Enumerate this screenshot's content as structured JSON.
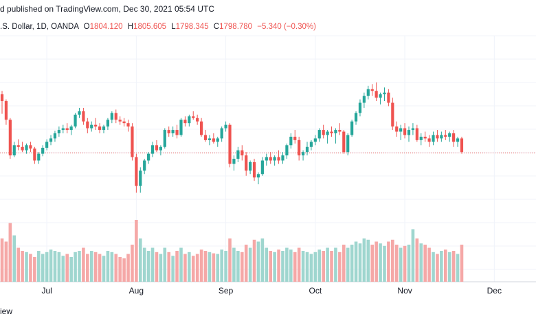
{
  "header": {
    "published": "d published on TradingView.com, Dec 30, 2021 05:54 UTC",
    "symbol": ".S. Dollar, 1D, OANDA",
    "open_label": "O",
    "open": "1804.120",
    "high_label": "H",
    "high": "1805.605",
    "low_label": "L",
    "low": "1798.345",
    "close_label": "C",
    "close": "1798.780",
    "change": "−5.340 (−0.30%)"
  },
  "footer": {
    "brand": "iew"
  },
  "colors": {
    "up": "#26a69a",
    "down": "#ef5350",
    "up_volume": "#9fd6cf",
    "down_volume": "#f5a8a7",
    "grid": "#f0f3fa",
    "last_price_line": "#ef5350"
  },
  "chart_data": {
    "type": "candlestick",
    "x_tick_labels": [
      "Jul",
      "Aug",
      "Sep",
      "Oct",
      "Nov",
      "Dec"
    ],
    "x_tick_index": [
      11,
      33,
      55,
      77,
      99,
      121
    ],
    "last_price": 1798.78,
    "ylim": [
      1720,
      1890
    ],
    "volume_max": 100,
    "candles": [
      [
        1868,
        1872,
        1845,
        1860,
        70
      ],
      [
        1860,
        1862,
        1832,
        1838,
        65
      ],
      [
        1838,
        1840,
        1792,
        1796,
        95
      ],
      [
        1796,
        1812,
        1794,
        1808,
        75
      ],
      [
        1808,
        1815,
        1802,
        1806,
        55
      ],
      [
        1806,
        1812,
        1800,
        1802,
        50
      ],
      [
        1802,
        1810,
        1798,
        1808,
        48
      ],
      [
        1808,
        1812,
        1800,
        1804,
        45
      ],
      [
        1804,
        1806,
        1786,
        1790,
        40
      ],
      [
        1790,
        1800,
        1786,
        1798,
        50
      ],
      [
        1798,
        1808,
        1795,
        1805,
        45
      ],
      [
        1805,
        1815,
        1802,
        1812,
        48
      ],
      [
        1812,
        1820,
        1808,
        1816,
        52
      ],
      [
        1816,
        1825,
        1812,
        1822,
        50
      ],
      [
        1822,
        1830,
        1818,
        1826,
        48
      ],
      [
        1826,
        1832,
        1822,
        1828,
        42
      ],
      [
        1828,
        1834,
        1822,
        1826,
        45
      ],
      [
        1826,
        1832,
        1820,
        1830,
        40
      ],
      [
        1830,
        1846,
        1828,
        1844,
        48
      ],
      [
        1844,
        1852,
        1840,
        1848,
        50
      ],
      [
        1848,
        1852,
        1832,
        1836,
        55
      ],
      [
        1836,
        1840,
        1822,
        1828,
        45
      ],
      [
        1828,
        1836,
        1824,
        1832,
        50
      ],
      [
        1832,
        1840,
        1826,
        1830,
        48
      ],
      [
        1830,
        1834,
        1822,
        1826,
        45
      ],
      [
        1826,
        1832,
        1822,
        1830,
        42
      ],
      [
        1830,
        1840,
        1826,
        1838,
        50
      ],
      [
        1838,
        1848,
        1834,
        1846,
        48
      ],
      [
        1846,
        1850,
        1834,
        1838,
        45
      ],
      [
        1838,
        1842,
        1832,
        1836,
        40
      ],
      [
        1836,
        1840,
        1830,
        1834,
        38
      ],
      [
        1834,
        1838,
        1824,
        1830,
        45
      ],
      [
        1830,
        1834,
        1790,
        1794,
        60
      ],
      [
        1794,
        1798,
        1752,
        1760,
        100
      ],
      [
        1760,
        1782,
        1752,
        1778,
        70
      ],
      [
        1778,
        1792,
        1774,
        1790,
        55
      ],
      [
        1790,
        1800,
        1786,
        1798,
        50
      ],
      [
        1798,
        1812,
        1794,
        1808,
        55
      ],
      [
        1808,
        1814,
        1800,
        1802,
        48
      ],
      [
        1802,
        1808,
        1796,
        1806,
        45
      ],
      [
        1806,
        1828,
        1804,
        1826,
        55
      ],
      [
        1826,
        1830,
        1818,
        1822,
        48
      ],
      [
        1822,
        1830,
        1818,
        1826,
        42
      ],
      [
        1826,
        1832,
        1816,
        1820,
        50
      ],
      [
        1820,
        1840,
        1818,
        1838,
        55
      ],
      [
        1838,
        1842,
        1830,
        1834,
        45
      ],
      [
        1834,
        1844,
        1830,
        1842,
        48
      ],
      [
        1842,
        1848,
        1838,
        1840,
        42
      ],
      [
        1840,
        1844,
        1832,
        1836,
        45
      ],
      [
        1836,
        1840,
        1818,
        1820,
        52
      ],
      [
        1820,
        1826,
        1812,
        1814,
        50
      ],
      [
        1814,
        1820,
        1808,
        1816,
        48
      ],
      [
        1816,
        1822,
        1810,
        1812,
        46
      ],
      [
        1812,
        1818,
        1806,
        1816,
        45
      ],
      [
        1816,
        1830,
        1812,
        1828,
        52
      ],
      [
        1828,
        1836,
        1824,
        1832,
        50
      ],
      [
        1832,
        1834,
        1782,
        1786,
        70
      ],
      [
        1786,
        1796,
        1778,
        1792,
        55
      ],
      [
        1792,
        1806,
        1788,
        1802,
        50
      ],
      [
        1802,
        1808,
        1790,
        1796,
        48
      ],
      [
        1796,
        1800,
        1772,
        1778,
        60
      ],
      [
        1778,
        1790,
        1774,
        1788,
        55
      ],
      [
        1788,
        1792,
        1766,
        1770,
        68
      ],
      [
        1770,
        1776,
        1762,
        1774,
        65
      ],
      [
        1774,
        1794,
        1772,
        1790,
        70
      ],
      [
        1790,
        1798,
        1784,
        1794,
        55
      ],
      [
        1794,
        1800,
        1786,
        1790,
        50
      ],
      [
        1790,
        1796,
        1784,
        1794,
        48
      ],
      [
        1794,
        1802,
        1786,
        1790,
        52
      ],
      [
        1790,
        1800,
        1786,
        1796,
        50
      ],
      [
        1796,
        1810,
        1792,
        1808,
        55
      ],
      [
        1808,
        1822,
        1804,
        1818,
        52
      ],
      [
        1818,
        1826,
        1810,
        1814,
        48
      ],
      [
        1814,
        1818,
        1790,
        1796,
        55
      ],
      [
        1796,
        1802,
        1790,
        1800,
        50
      ],
      [
        1800,
        1812,
        1796,
        1806,
        48
      ],
      [
        1806,
        1814,
        1802,
        1812,
        45
      ],
      [
        1812,
        1820,
        1808,
        1816,
        48
      ],
      [
        1816,
        1828,
        1812,
        1826,
        52
      ],
      [
        1826,
        1832,
        1816,
        1820,
        50
      ],
      [
        1820,
        1826,
        1810,
        1824,
        55
      ],
      [
        1824,
        1830,
        1818,
        1822,
        50
      ],
      [
        1822,
        1828,
        1810,
        1826,
        55
      ],
      [
        1826,
        1834,
        1820,
        1824,
        48
      ],
      [
        1824,
        1826,
        1798,
        1800,
        60
      ],
      [
        1800,
        1822,
        1796,
        1820,
        55
      ],
      [
        1820,
        1838,
        1818,
        1836,
        60
      ],
      [
        1836,
        1848,
        1832,
        1846,
        65
      ],
      [
        1846,
        1862,
        1842,
        1858,
        62
      ],
      [
        1858,
        1870,
        1852,
        1866,
        70
      ],
      [
        1866,
        1878,
        1862,
        1874,
        68
      ],
      [
        1874,
        1880,
        1866,
        1872,
        60
      ],
      [
        1872,
        1882,
        1860,
        1864,
        65
      ],
      [
        1864,
        1870,
        1856,
        1868,
        62
      ],
      [
        1868,
        1876,
        1860,
        1870,
        58
      ],
      [
        1870,
        1874,
        1854,
        1858,
        65
      ],
      [
        1858,
        1864,
        1826,
        1830,
        68
      ],
      [
        1830,
        1836,
        1818,
        1824,
        60
      ],
      [
        1824,
        1832,
        1814,
        1828,
        55
      ],
      [
        1828,
        1834,
        1816,
        1820,
        58
      ],
      [
        1820,
        1830,
        1812,
        1826,
        60
      ],
      [
        1826,
        1834,
        1820,
        1828,
        85
      ],
      [
        1828,
        1832,
        1812,
        1814,
        70
      ],
      [
        1814,
        1822,
        1808,
        1818,
        62
      ],
      [
        1818,
        1824,
        1812,
        1816,
        60
      ],
      [
        1816,
        1820,
        1806,
        1812,
        55
      ],
      [
        1812,
        1824,
        1808,
        1820,
        48
      ],
      [
        1820,
        1826,
        1812,
        1816,
        45
      ],
      [
        1816,
        1824,
        1812,
        1820,
        50
      ],
      [
        1820,
        1826,
        1814,
        1818,
        52
      ],
      [
        1818,
        1824,
        1812,
        1822,
        48
      ],
      [
        1822,
        1826,
        1806,
        1812,
        50
      ],
      [
        1812,
        1818,
        1806,
        1816,
        45
      ],
      [
        1816,
        1818,
        1798,
        1800,
        60
      ]
    ]
  }
}
